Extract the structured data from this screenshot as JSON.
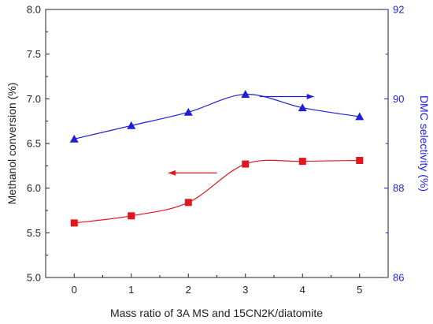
{
  "chart_data": {
    "type": "line",
    "title": "",
    "xlabel": "Mass ratio of 3A MS and 15CN2K/diatomite",
    "ylabel_left": "Methanol conversion (%)",
    "ylabel_right": "DMC selectivity (%)",
    "x": [
      0,
      1,
      2,
      3,
      4,
      5
    ],
    "xlim": [
      -0.5,
      5.5
    ],
    "x_ticks": [
      "0",
      "1",
      "2",
      "3",
      "4",
      "5"
    ],
    "ylim_left": [
      5.0,
      8.0
    ],
    "y_ticks_left": [
      "5.0",
      "5.5",
      "6.0",
      "6.5",
      "7.0",
      "7.5",
      "8.0"
    ],
    "ylim_right": [
      86,
      92
    ],
    "y_ticks_right": [
      "86",
      "88",
      "90",
      "92"
    ],
    "grid": false,
    "series": [
      {
        "axis": "left",
        "color": "#e0161d",
        "marker": "square",
        "values": [
          5.61,
          5.69,
          5.84,
          6.27,
          6.3,
          6.31
        ]
      },
      {
        "axis": "right",
        "color": "#1f1fd6",
        "marker": "triangle",
        "values": [
          89.1,
          89.4,
          89.7,
          90.1,
          89.8,
          89.6
        ]
      }
    ],
    "annotations": [
      {
        "type": "arrow",
        "series": 0,
        "direction": "left",
        "x_from": 2.5,
        "x_to": 1.65,
        "y": 6.17
      },
      {
        "type": "arrow",
        "series": 1,
        "direction": "right",
        "x_from": 3.25,
        "x_to": 4.2,
        "y": 90.05
      }
    ]
  }
}
